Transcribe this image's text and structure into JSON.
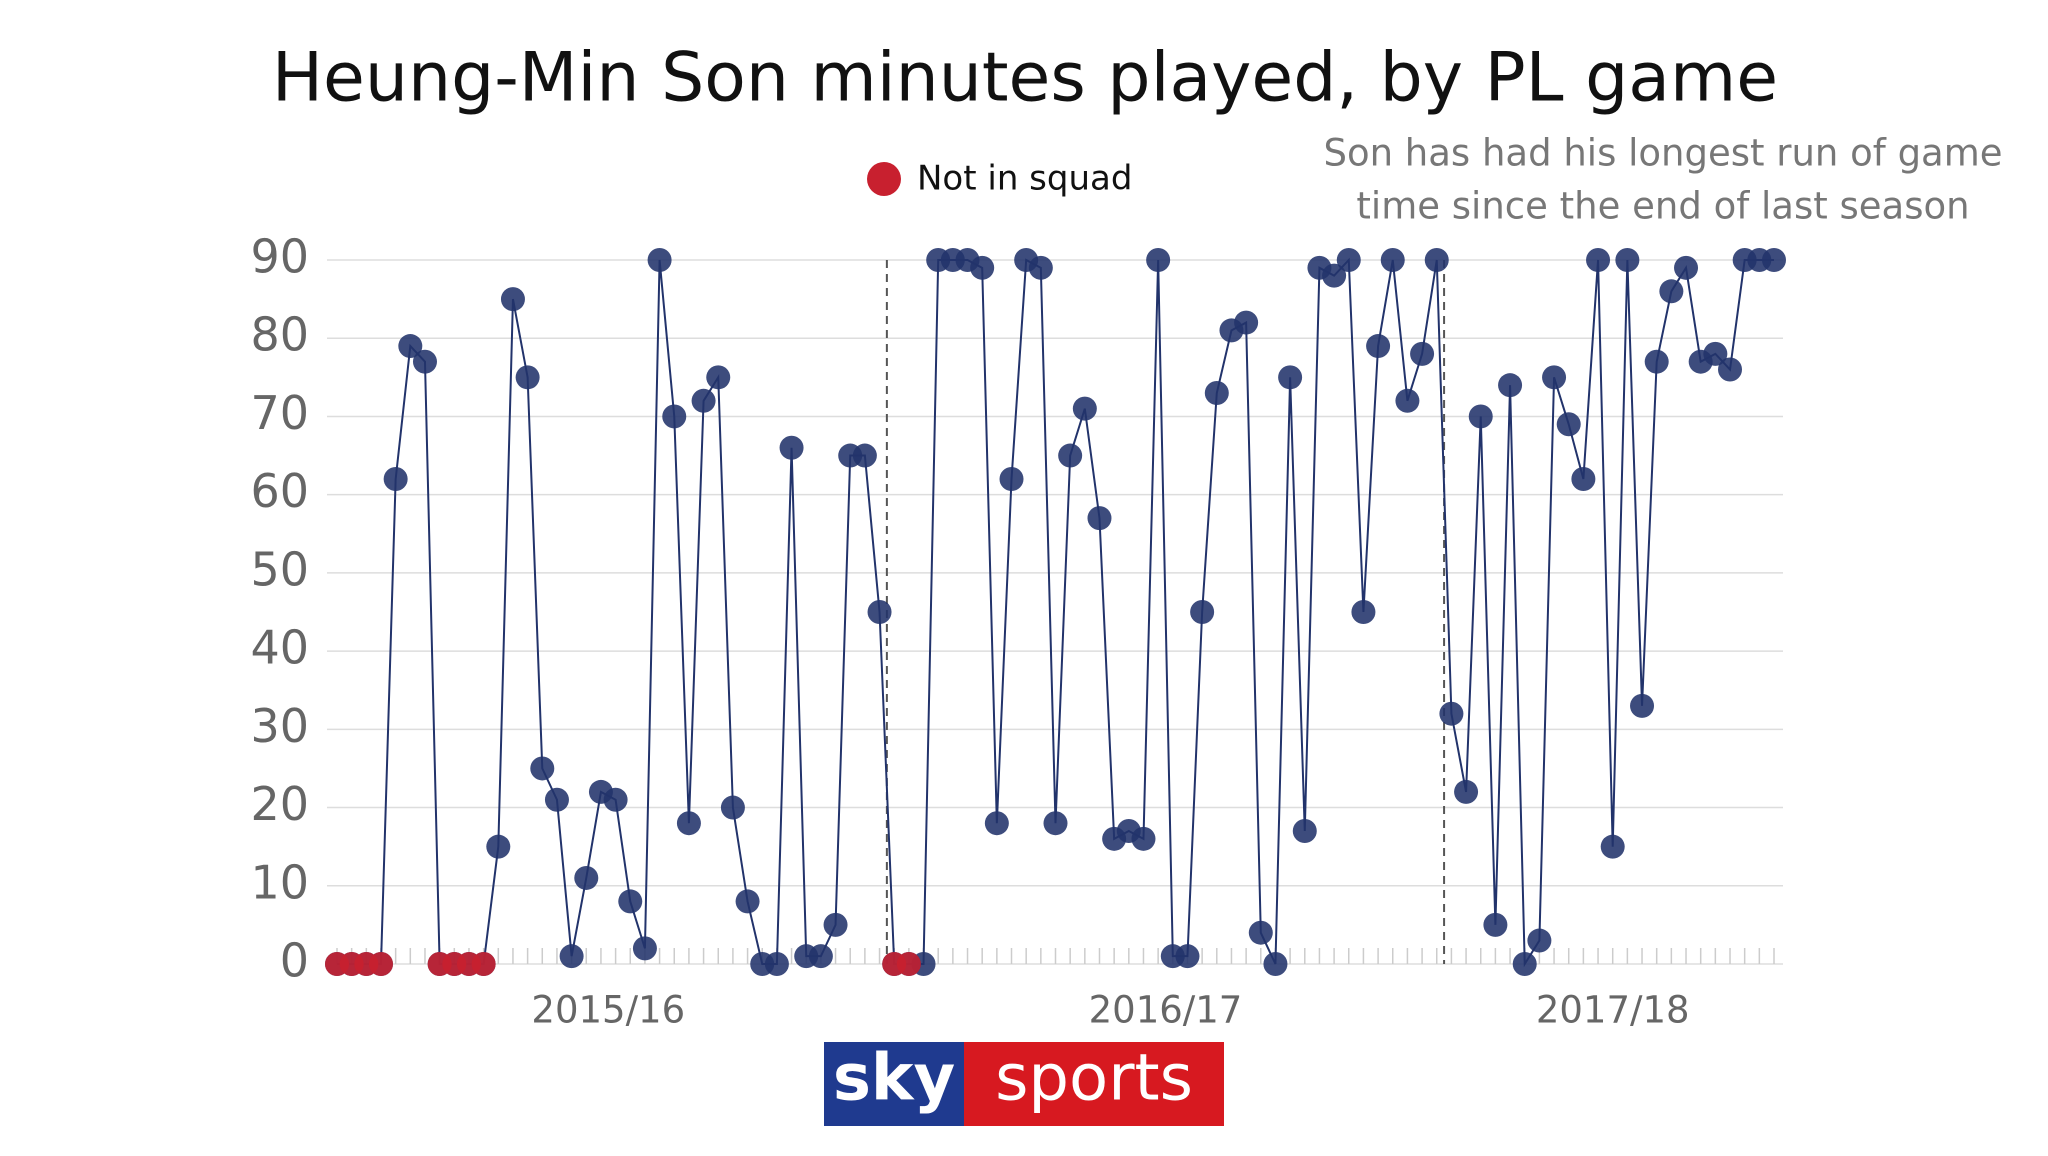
{
  "chart_data": {
    "type": "line",
    "title": "Heung-Min Son minutes played, by PL game",
    "annotation": [
      "Son has had his longest run of game",
      "time since the end of last season"
    ],
    "categories": [
      null,
      null,
      null,
      null,
      null,
      null,
      null,
      null,
      null,
      null,
      null,
      null,
      null,
      null,
      null,
      null,
      null,
      null,
      null,
      null,
      null,
      null,
      null,
      null,
      null,
      null,
      null,
      null,
      null,
      null,
      null,
      null,
      null,
      null,
      null,
      null,
      null,
      null,
      null,
      null,
      null,
      null,
      null,
      null,
      null,
      null,
      null,
      null,
      null,
      null,
      null,
      null,
      null,
      null,
      null,
      null,
      null,
      null,
      null,
      null,
      null,
      null,
      null,
      null,
      null,
      null,
      null,
      null,
      null,
      null,
      null,
      null,
      null,
      null,
      null,
      null,
      null,
      null,
      null,
      null,
      null,
      null,
      null,
      null,
      null,
      null,
      null,
      null,
      null,
      null,
      null,
      null,
      null,
      null,
      null,
      null,
      null,
      null,
      null
    ],
    "seasons": [
      {
        "label": "2015/16",
        "games": 38
      },
      {
        "label": "2016/17",
        "games": 38
      },
      {
        "label": "2017/18",
        "games": 23
      }
    ],
    "series": [
      {
        "color": "#22336b",
        "values": [
          0,
          0,
          0,
          0,
          62,
          79,
          77,
          0,
          0,
          0,
          0,
          15,
          85,
          75,
          25,
          21,
          1,
          11,
          22,
          21,
          8,
          2,
          90,
          70,
          18,
          72,
          75,
          20,
          8,
          0,
          0,
          66,
          1,
          1,
          5,
          65,
          65,
          45,
          0,
          0,
          0,
          90,
          90,
          90,
          89,
          18,
          62,
          90,
          89,
          18,
          65,
          71,
          57,
          16,
          17,
          16,
          90,
          1,
          1,
          45,
          73,
          81,
          82,
          4,
          0,
          75,
          17,
          89,
          88,
          90,
          45,
          79,
          90,
          72,
          78,
          90,
          32,
          22,
          70,
          5,
          74,
          0,
          3,
          75,
          69,
          62,
          90,
          15,
          90,
          33,
          77,
          86,
          89,
          77,
          78,
          76,
          90,
          90,
          90
        ]
      },
      {
        "name": "Not in squad",
        "color": "#c8202f",
        "values": [
          0,
          0,
          0,
          0,
          null,
          null,
          null,
          0,
          0,
          0,
          0,
          null,
          null,
          null,
          null,
          null,
          null,
          null,
          null,
          null,
          null,
          null,
          null,
          null,
          null,
          null,
          null,
          null,
          null,
          null,
          null,
          null,
          null,
          null,
          null,
          null,
          null,
          null,
          0,
          0,
          null,
          null,
          null,
          null,
          null,
          null,
          null,
          null,
          null,
          null,
          null,
          null,
          null,
          null,
          null,
          null,
          null,
          null,
          null,
          null,
          null,
          null,
          null,
          null,
          null,
          null,
          null,
          null,
          null,
          null,
          null,
          null,
          null,
          null,
          null,
          null,
          null,
          null,
          null,
          null,
          null,
          null,
          null,
          null,
          null,
          null,
          null,
          null,
          null,
          null,
          null,
          null,
          null,
          null,
          null,
          null,
          null,
          null,
          null
        ]
      }
    ],
    "ylim": [
      0,
      90
    ],
    "yticks": [
      0,
      10,
      20,
      30,
      40,
      50,
      60,
      70,
      80,
      90
    ],
    "grid": true
  },
  "logo": {
    "left": "sky",
    "right": "sports"
  }
}
